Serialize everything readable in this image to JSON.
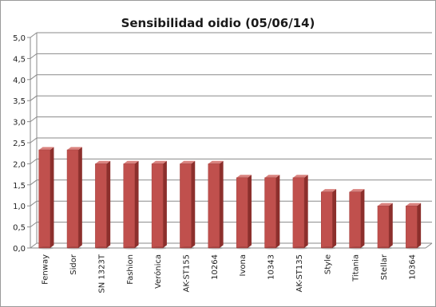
{
  "chart_data": {
    "type": "bar",
    "title": "Sensibilidad oidio (05/06/14)",
    "categories": [
      "Fenway",
      "Sidor",
      "SN 1323T",
      "Fashion",
      "Verónica",
      "AK-ST155",
      "10264",
      "Ivona",
      "10343",
      "AK-ST135",
      "Style",
      "Titania",
      "Stellar",
      "10364"
    ],
    "values": [
      2.33,
      2.33,
      2.0,
      2.0,
      2.0,
      2.0,
      2.0,
      1.67,
      1.67,
      1.67,
      1.33,
      1.33,
      1.0,
      1.0
    ],
    "yticks": [
      "0,0",
      "0,5",
      "1,0",
      "1,5",
      "2,0",
      "2,5",
      "3,0",
      "3,5",
      "4,0",
      "4,5",
      "5,0"
    ],
    "ylim": [
      0,
      5
    ],
    "xlabel": "",
    "ylabel": "",
    "grid": true,
    "legend": "none",
    "colors": {
      "bar_front": "#c0504d",
      "bar_side": "#8c2f2c",
      "bar_top": "#d9837f",
      "grid": "#8a8a8a",
      "wall": "#ffffff"
    }
  }
}
